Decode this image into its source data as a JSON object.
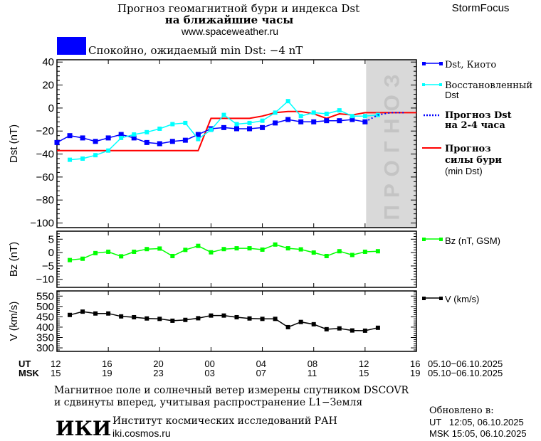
{
  "header": {
    "title_line1": "Прогноз геомагнитной бури и индекса Dst",
    "title_line2": "на ближайшие часы",
    "website": "www.spaceweather.ru",
    "brand": "StormFocus",
    "status_text": "Спокойно, ожидаемый min Dst: −4 nT",
    "status_color": "#0000ff"
  },
  "legend": {
    "dst_kyoto": "Dst, Киото",
    "reconstructed_1": "Восстановленный",
    "reconstructed_2": "Dst",
    "forecast_1": "Прогноз Dst",
    "forecast_2": "на 2-4 часа",
    "storm_1": "Прогноз",
    "storm_2": "силы бури",
    "storm_3": "(min Dst)",
    "bz": "Bz (nT, GSM)",
    "v": "V (km/s)"
  },
  "forecast_band_label": "ПРОГНОЗ",
  "x_axis": {
    "ut_label": "UT",
    "msk_label": "MSK",
    "ut_ticks": [
      "12",
      "16",
      "20",
      "00",
      "04",
      "08",
      "12",
      "16"
    ],
    "msk_ticks": [
      "15",
      "19",
      "23",
      "03",
      "07",
      "11",
      "15",
      "19"
    ],
    "tick_times": [
      "05.10 12:00",
      "05.10 16:00",
      "05.10 20:00",
      "06.10 00:00",
      "06.10 04:00",
      "06.10 08:00",
      "06.10 12:00",
      "06.10 16:00"
    ],
    "ut_range": "05.10−06.10.2025",
    "msk_range": "05.10−06.10.2025"
  },
  "chart_data": [
    {
      "type": "line",
      "ylabel": "Dst (nT)",
      "ylim": [
        -104,
        42
      ],
      "yticks": [
        40,
        20,
        0,
        -20,
        -40,
        -60,
        -80,
        -100
      ],
      "xlim": [
        "05.10 12:00",
        "06.10 16:00"
      ],
      "forecast_region": [
        "06.10 12:05",
        "06.10 16:00"
      ],
      "x": [
        "05.10 12:00",
        "05.10 13:00",
        "05.10 14:00",
        "05.10 15:00",
        "05.10 16:00",
        "05.10 17:00",
        "05.10 18:00",
        "05.10 19:00",
        "05.10 20:00",
        "05.10 21:00",
        "05.10 22:00",
        "05.10 23:00",
        "06.10 00:00",
        "06.10 01:00",
        "06.10 02:00",
        "06.10 03:00",
        "06.10 04:00",
        "06.10 05:00",
        "06.10 06:00",
        "06.10 07:00",
        "06.10 08:00",
        "06.10 09:00",
        "06.10 10:00",
        "06.10 11:00",
        "06.10 12:00",
        "06.10 13:00"
      ],
      "series": [
        {
          "name": "Dst, Киото",
          "color": "#0000ff",
          "values": [
            -30,
            -24,
            -26,
            -29,
            -26,
            -23,
            -26,
            -30,
            -31,
            -29,
            -28,
            -23,
            -18,
            -17,
            -18,
            -18,
            -17,
            -13,
            -10,
            -12,
            -12,
            -11,
            -11,
            -10,
            -12,
            null
          ]
        },
        {
          "name": "Восстановленный Dst",
          "color": "#00ffff",
          "values": [
            null,
            -45,
            -44,
            -41,
            -37,
            -26,
            -23,
            -21,
            -18,
            -14,
            -13,
            -27,
            -19,
            -6,
            -14,
            -13,
            -11,
            -4,
            6,
            -7,
            -4,
            -5,
            -2,
            -7,
            -7,
            -6
          ]
        }
      ],
      "forecast_dst": {
        "name": "Прогноз Dst на 2-4 часа",
        "color": "#0000ff",
        "points": [
          [
            "06.10 12:00",
            -12
          ],
          [
            "06.10 13:00",
            -6
          ],
          [
            "06.10 14:00",
            -4
          ],
          [
            "06.10 15:00",
            -4
          ]
        ]
      },
      "storm_forecast": {
        "name": "Прогноз силы бури (min Dst)",
        "color": "#ff0000",
        "points": [
          [
            "05.10 12:00",
            -37
          ],
          [
            "05.10 23:00",
            -37
          ],
          [
            "06.10 00:00",
            -9
          ],
          [
            "06.10 03:00",
            -9
          ],
          [
            "06.10 04:00",
            -7
          ],
          [
            "06.10 05:00",
            -4
          ],
          [
            "06.10 06:00",
            -3
          ],
          [
            "06.10 07:00",
            -3
          ],
          [
            "06.10 08:00",
            -5
          ],
          [
            "06.10 09:00",
            -9
          ],
          [
            "06.10 10:00",
            -5
          ],
          [
            "06.10 11:00",
            -6
          ],
          [
            "06.10 12:00",
            -4
          ],
          [
            "06.10 16:00",
            -4
          ]
        ]
      }
    },
    {
      "type": "line",
      "ylabel": "Bz (nT)",
      "ylim": [
        -13,
        8
      ],
      "yticks": [
        5,
        0,
        -5,
        -10
      ],
      "x": [
        "05.10 13:00",
        "05.10 14:00",
        "05.10 15:00",
        "05.10 16:00",
        "05.10 17:00",
        "05.10 18:00",
        "05.10 19:00",
        "05.10 20:00",
        "05.10 21:00",
        "05.10 22:00",
        "05.10 23:00",
        "06.10 00:00",
        "06.10 01:00",
        "06.10 02:00",
        "06.10 03:00",
        "06.10 04:00",
        "06.10 05:00",
        "06.10 06:00",
        "06.10 07:00",
        "06.10 08:00",
        "06.10 09:00",
        "06.10 10:00",
        "06.10 11:00",
        "06.10 12:00",
        "06.10 13:00"
      ],
      "series": [
        {
          "name": "Bz (nT, GSM)",
          "color": "#00ff00",
          "values": [
            -2.8,
            -2.3,
            -0.2,
            0.3,
            -1.4,
            0.3,
            1.3,
            1.5,
            -1.3,
            1.0,
            2.5,
            0.1,
            1.3,
            1.6,
            1.6,
            1.1,
            3.0,
            1.6,
            1.2,
            0.0,
            -1.3,
            0.5,
            -0.9,
            0.3,
            0.5
          ]
        }
      ]
    },
    {
      "type": "line",
      "ylabel": "V (km/s)",
      "ylim": [
        283,
        575
      ],
      "yticks": [
        550,
        500,
        450,
        400,
        350,
        300
      ],
      "x": [
        "05.10 13:00",
        "05.10 14:00",
        "05.10 15:00",
        "05.10 16:00",
        "05.10 17:00",
        "05.10 18:00",
        "05.10 19:00",
        "05.10 20:00",
        "05.10 21:00",
        "05.10 22:00",
        "05.10 23:00",
        "06.10 00:00",
        "06.10 01:00",
        "06.10 02:00",
        "06.10 03:00",
        "06.10 04:00",
        "06.10 05:00",
        "06.10 06:00",
        "06.10 07:00",
        "06.10 08:00",
        "06.10 09:00",
        "06.10 10:00",
        "06.10 11:00",
        "06.10 12:00",
        "06.10 13:00"
      ],
      "series": [
        {
          "name": "V (km/s)",
          "color": "#000000",
          "values": [
            459,
            475,
            466,
            466,
            452,
            448,
            442,
            440,
            431,
            435,
            443,
            456,
            456,
            448,
            442,
            440,
            440,
            400,
            425,
            414,
            390,
            394,
            384,
            383,
            397
          ]
        }
      ]
    }
  ],
  "footer": {
    "note_line1": "Магнитное поле и солнечный ветер измерены спутником DSCOVR",
    "note_line2": "и сдвинуты вперед, учитывая распространение L1−Земля",
    "logo": "ИКИ",
    "institute": "Институт космических исследований РАН",
    "institute_site": "iki.cosmos.ru",
    "updated_label": "Обновлено в:",
    "updated_ut": "UT   12:05, 06.10.2025",
    "updated_msk": "MSK 15:05, 06.10.2025"
  }
}
